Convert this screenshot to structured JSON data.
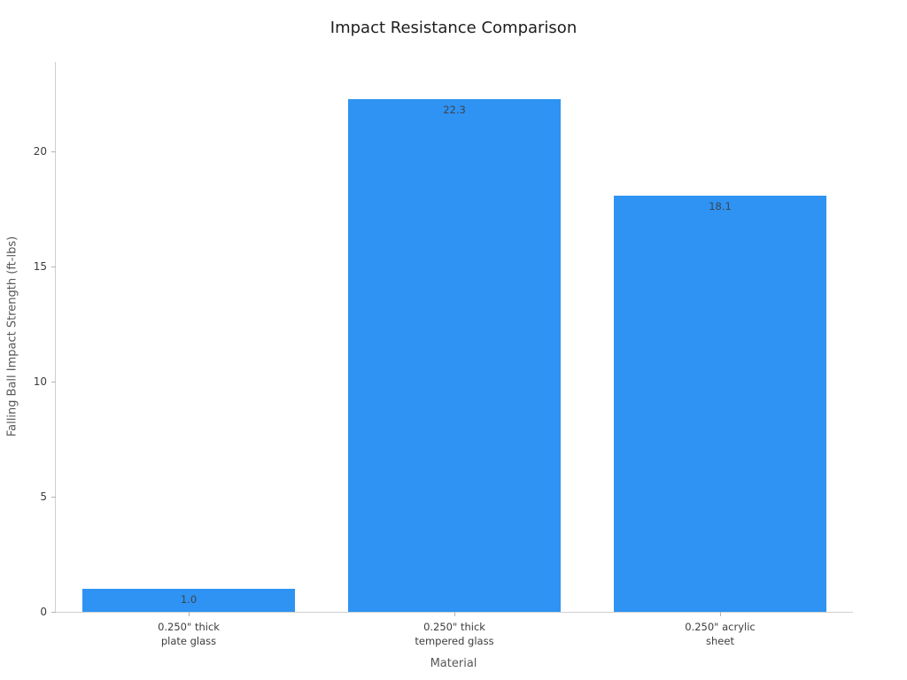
{
  "chart_data": {
    "type": "bar",
    "title": "Impact Resistance Comparison",
    "xlabel": "Material",
    "ylabel": "Falling Ball Impact Strength (ft-lbs)",
    "categories": [
      "0.250\" thick\nplate glass",
      "0.250\" thick\ntempered glass",
      "0.250\" acrylic\nsheet"
    ],
    "values": [
      1.0,
      22.3,
      18.1
    ],
    "value_labels": [
      "1.0",
      "22.3",
      "18.1"
    ],
    "ylim": [
      0,
      23.9
    ],
    "yticks": [
      0,
      5,
      10,
      15,
      20
    ],
    "bar_color": "#2e93f3",
    "bar_width_fraction": 0.8,
    "grid": false,
    "legend": false,
    "background_color": "#ffffff"
  }
}
